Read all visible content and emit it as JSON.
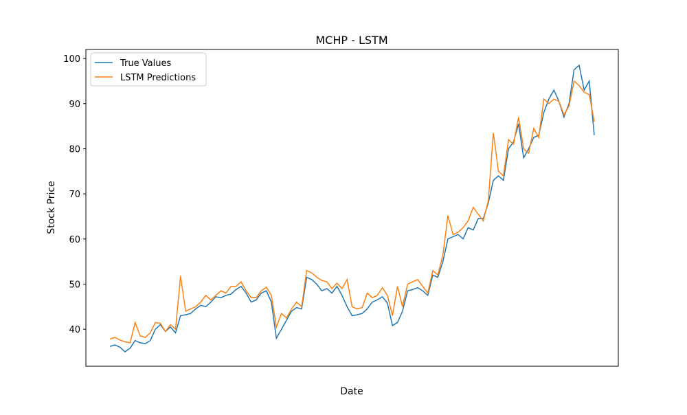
{
  "chart_data": {
    "type": "line",
    "title": "MCHP - LSTM",
    "xlabel": "Date",
    "ylabel": "Stock Price",
    "ylim": [
      31.8,
      102
    ],
    "yticks": [
      40,
      50,
      60,
      70,
      80,
      90,
      100
    ],
    "legend": "upper left",
    "series": [
      {
        "name": "True Values",
        "color": "#1f77b4",
        "values": [
          36.2,
          36.5,
          36,
          35,
          35.8,
          37.5,
          37,
          36.8,
          37.5,
          40,
          41,
          39.5,
          40.5,
          39.2,
          43,
          43.2,
          43.5,
          44.5,
          45.3,
          45,
          46,
          47.2,
          47,
          47.5,
          47.8,
          48.8,
          49.5,
          48,
          46,
          46.5,
          48,
          48.5,
          46,
          38,
          40,
          42,
          44,
          44.8,
          44.5,
          51.5,
          51,
          50,
          48.5,
          49,
          48,
          49.5,
          47.5,
          45,
          43,
          43.2,
          43.5,
          44.5,
          46,
          46.5,
          47.2,
          45.8,
          40.8,
          41.5,
          44,
          48.5,
          48.8,
          49.2,
          48.5,
          47.5,
          52,
          51.5,
          55,
          60,
          60.5,
          61,
          60,
          62.5,
          62,
          64.5,
          64.5,
          68,
          73,
          74,
          73,
          80,
          81.5,
          85.5,
          78,
          80,
          82.5,
          83,
          88,
          91,
          93,
          90.5,
          87,
          90,
          97.5,
          98.5,
          93,
          95,
          83
        ]
      },
      {
        "name": "LSTM Predictions",
        "color": "#ff7f0e",
        "values": [
          37.8,
          38.2,
          37.6,
          37.2,
          37,
          41.5,
          38.5,
          38.2,
          39.2,
          41.5,
          41.3,
          39.5,
          41,
          40,
          51.8,
          44,
          44.5,
          45,
          46,
          47.5,
          46.5,
          47.5,
          48.5,
          48,
          49.5,
          49.5,
          50.5,
          48.5,
          47,
          47,
          48.5,
          49.3,
          47.5,
          40.5,
          43.5,
          42.5,
          44.5,
          46,
          45,
          53,
          52.5,
          51.5,
          50.8,
          50.5,
          49,
          50.2,
          49,
          51,
          45,
          44.5,
          44.8,
          48,
          47,
          47.5,
          49.2,
          47.5,
          43,
          49.5,
          45,
          50,
          50.5,
          51,
          49.5,
          48,
          53,
          52,
          56.5,
          65.2,
          61,
          61.5,
          62.5,
          64,
          67,
          65.5,
          64,
          68.5,
          83.5,
          75,
          74,
          82,
          81,
          87,
          80,
          79,
          84.5,
          82.5,
          91,
          90,
          91,
          90.5,
          87.5,
          89.5,
          95,
          94,
          92.5,
          92,
          86
        ]
      }
    ]
  }
}
